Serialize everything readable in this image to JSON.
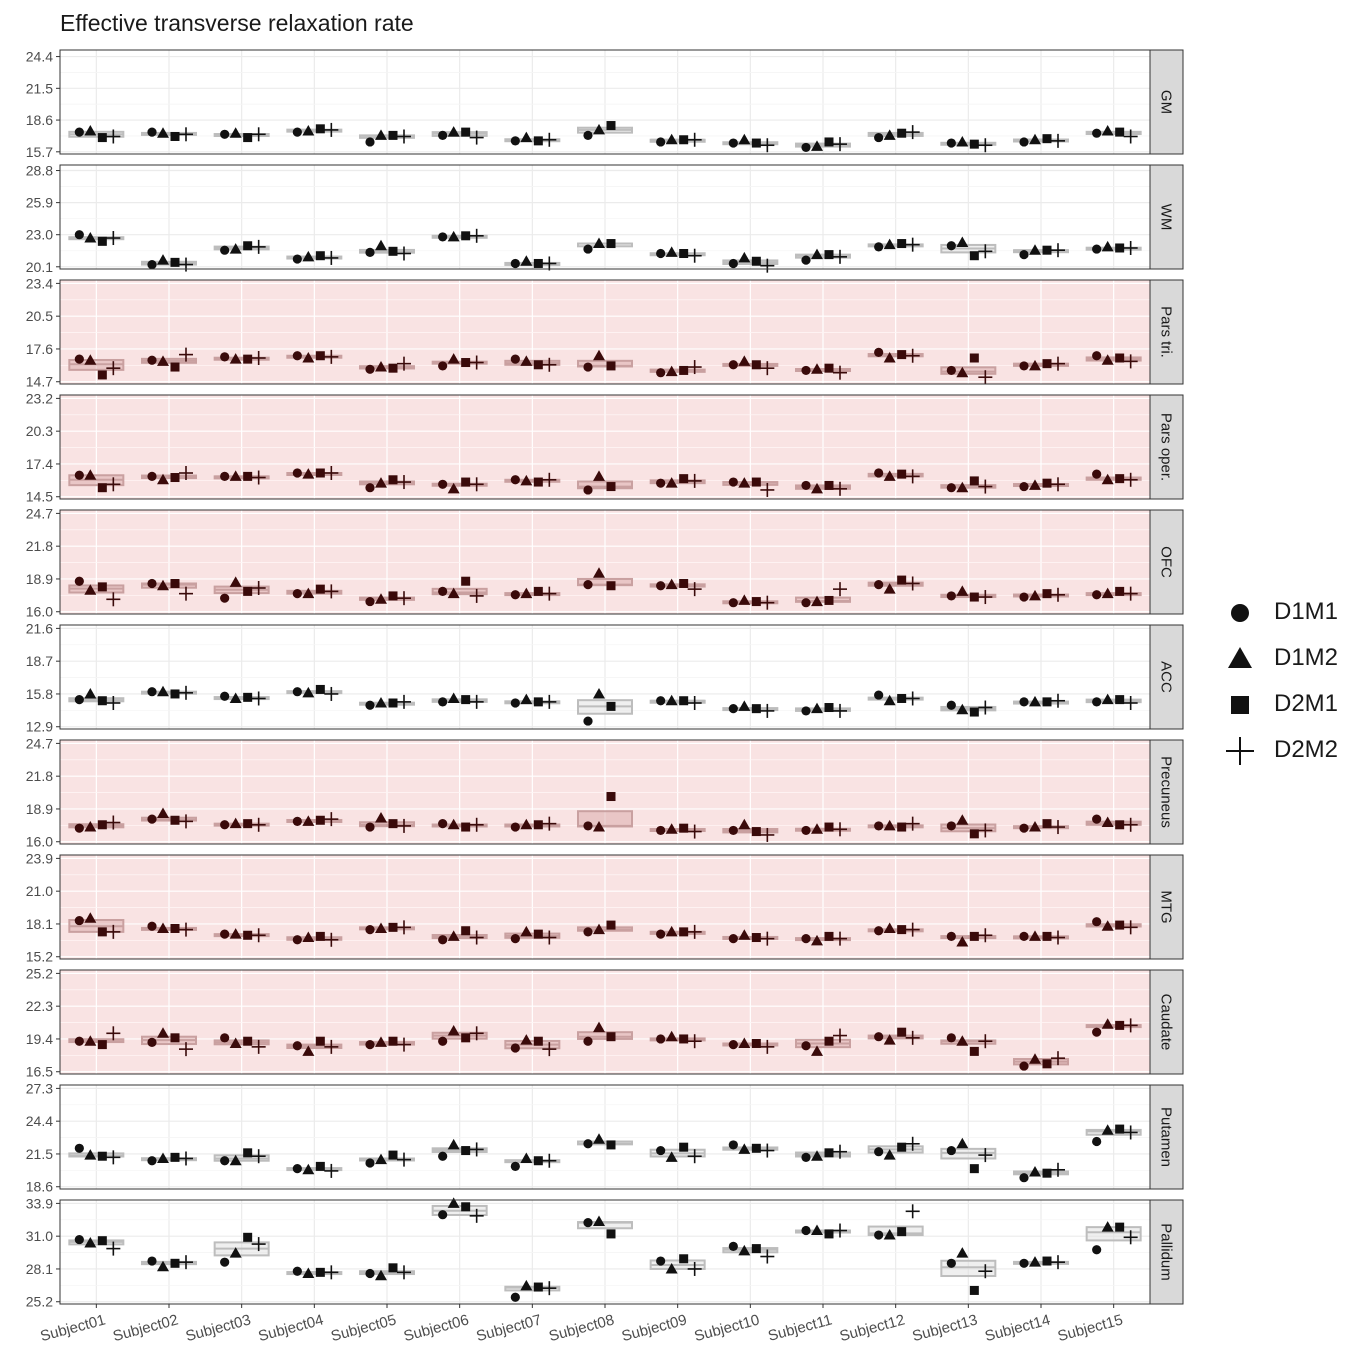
{
  "title": "Effective transverse relaxation rate",
  "legend": [
    {
      "label": "D1M1",
      "shape": "circle"
    },
    {
      "label": "D1M2",
      "shape": "triangle"
    },
    {
      "label": "D2M1",
      "shape": "square"
    },
    {
      "label": "D2M2",
      "shape": "plus"
    }
  ],
  "colors": {
    "highlight_panel": "#f9e3e3",
    "strip": "#d9d9d9",
    "box_gray": "#bdbdbd",
    "box_red": "#c9a0a0",
    "marker": "#111111",
    "marker_red": "#3a0a0a"
  },
  "chart_data": {
    "type": "scatter",
    "title": "Effective transverse relaxation rate",
    "xlabel": "",
    "ylabel": "",
    "categories": [
      "Subject01",
      "Subject02",
      "Subject03",
      "Subject04",
      "Subject05",
      "Subject06",
      "Subject07",
      "Subject08",
      "Subject09",
      "Subject10",
      "Subject11",
      "Subject12",
      "Subject13",
      "Subject14",
      "Subject15"
    ],
    "series_names": [
      "D1M1",
      "D1M2",
      "D2M1",
      "D2M2"
    ],
    "panels": [
      {
        "name": "GM",
        "highlight": false,
        "ylim": [
          15.5,
          25.0
        ],
        "ticks": [
          "15.7",
          "18.6",
          "21.5",
          "24.4"
        ],
        "values": [
          [
            17.5,
            17.6,
            17.0,
            17.1
          ],
          [
            17.5,
            17.4,
            17.1,
            17.3
          ],
          [
            17.3,
            17.4,
            17.0,
            17.3
          ],
          [
            17.5,
            17.6,
            17.8,
            17.7
          ],
          [
            16.6,
            17.2,
            17.2,
            17.1
          ],
          [
            17.2,
            17.5,
            17.5,
            17.0
          ],
          [
            16.7,
            17.0,
            16.7,
            16.8
          ],
          [
            17.2,
            17.7,
            18.1,
            null
          ],
          [
            16.6,
            16.8,
            16.8,
            16.8
          ],
          [
            16.5,
            16.8,
            16.5,
            16.3
          ],
          [
            16.1,
            16.2,
            16.6,
            16.4
          ],
          [
            17.0,
            17.2,
            17.4,
            17.5
          ],
          [
            16.5,
            16.6,
            16.4,
            16.3
          ],
          [
            16.6,
            16.8,
            16.9,
            16.7
          ],
          [
            17.4,
            17.6,
            17.5,
            17.1
          ]
        ]
      },
      {
        "name": "WM",
        "highlight": false,
        "ylim": [
          19.9,
          29.3
        ],
        "ticks": [
          "20.1",
          "23.0",
          "25.9",
          "28.8"
        ],
        "values": [
          [
            23.0,
            22.7,
            22.4,
            22.7
          ],
          [
            20.3,
            20.7,
            20.5,
            20.3
          ],
          [
            21.6,
            21.7,
            22.0,
            21.9
          ],
          [
            20.8,
            21.0,
            21.1,
            20.9
          ],
          [
            21.4,
            22.0,
            21.5,
            21.3
          ],
          [
            22.8,
            22.8,
            22.9,
            22.9
          ],
          [
            20.4,
            20.6,
            20.4,
            20.4
          ],
          [
            21.7,
            22.2,
            22.2,
            null
          ],
          [
            21.3,
            21.4,
            21.3,
            21.1
          ],
          [
            20.4,
            20.9,
            20.6,
            20.2
          ],
          [
            20.7,
            21.2,
            21.2,
            21.0
          ],
          [
            21.9,
            22.1,
            22.2,
            22.1
          ],
          [
            22.0,
            22.3,
            21.1,
            21.5
          ],
          [
            21.2,
            21.6,
            21.6,
            21.6
          ],
          [
            21.7,
            21.9,
            21.8,
            21.8
          ]
        ]
      },
      {
        "name": "Pars tri.",
        "highlight": true,
        "ylim": [
          14.5,
          23.7
        ],
        "ticks": [
          "14.7",
          "17.6",
          "20.5",
          "23.4"
        ],
        "values": [
          [
            16.7,
            16.6,
            15.3,
            15.9
          ],
          [
            16.6,
            16.5,
            16.0,
            17.1
          ],
          [
            16.9,
            16.7,
            16.7,
            16.8
          ],
          [
            17.0,
            16.8,
            17.0,
            16.9
          ],
          [
            15.8,
            16.0,
            15.9,
            16.3
          ],
          [
            16.1,
            16.7,
            16.4,
            16.4
          ],
          [
            16.7,
            16.5,
            16.2,
            16.2
          ],
          [
            16.0,
            17.0,
            16.1,
            null
          ],
          [
            15.5,
            15.6,
            15.7,
            16.0
          ],
          [
            16.2,
            16.5,
            16.2,
            15.9
          ],
          [
            15.7,
            15.8,
            15.9,
            15.5
          ],
          [
            17.3,
            16.8,
            17.1,
            17.0
          ],
          [
            15.7,
            15.5,
            16.8,
            15.1
          ],
          [
            16.1,
            16.1,
            16.3,
            16.3
          ],
          [
            17.0,
            16.6,
            16.8,
            16.5
          ]
        ]
      },
      {
        "name": "Pars oper.",
        "highlight": true,
        "ylim": [
          14.3,
          23.5
        ],
        "ticks": [
          "14.5",
          "17.4",
          "20.3",
          "23.2"
        ],
        "values": [
          [
            16.4,
            16.4,
            15.3,
            15.6
          ],
          [
            16.3,
            16.0,
            16.2,
            16.6
          ],
          [
            16.3,
            16.3,
            16.3,
            16.2
          ],
          [
            16.6,
            16.5,
            16.6,
            16.6
          ],
          [
            15.3,
            15.7,
            16.0,
            15.8
          ],
          [
            15.6,
            15.2,
            15.8,
            15.6
          ],
          [
            16.0,
            15.9,
            15.8,
            16.0
          ],
          [
            15.1,
            16.3,
            15.4,
            null
          ],
          [
            15.7,
            15.7,
            16.1,
            15.9
          ],
          [
            15.8,
            15.7,
            15.8,
            15.1
          ],
          [
            15.5,
            15.2,
            15.5,
            15.2
          ],
          [
            16.6,
            16.3,
            16.5,
            16.3
          ],
          [
            15.3,
            15.3,
            15.9,
            15.4
          ],
          [
            15.4,
            15.5,
            15.7,
            15.6
          ],
          [
            16.5,
            16.0,
            16.1,
            16.0
          ]
        ]
      },
      {
        "name": "OFC",
        "highlight": true,
        "ylim": [
          15.8,
          25.0
        ],
        "ticks": [
          "16.0",
          "18.9",
          "21.8",
          "24.7"
        ],
        "values": [
          [
            18.7,
            17.9,
            18.2,
            17.1
          ],
          [
            18.5,
            18.3,
            18.5,
            17.6
          ],
          [
            17.2,
            18.6,
            17.8,
            18.1
          ],
          [
            17.6,
            17.6,
            18.0,
            17.8
          ],
          [
            16.9,
            17.1,
            17.4,
            17.2
          ],
          [
            17.8,
            17.6,
            18.7,
            17.4
          ],
          [
            17.5,
            17.6,
            17.8,
            17.6
          ],
          [
            18.4,
            19.4,
            18.3,
            null
          ],
          [
            18.3,
            18.4,
            18.5,
            18.0
          ],
          [
            16.8,
            17.0,
            16.9,
            16.8
          ],
          [
            16.8,
            16.9,
            17.0,
            18.0
          ],
          [
            18.4,
            18.0,
            18.8,
            18.5
          ],
          [
            17.4,
            17.8,
            17.3,
            17.3
          ],
          [
            17.3,
            17.4,
            17.6,
            17.5
          ],
          [
            17.5,
            17.6,
            17.8,
            17.6
          ]
        ]
      },
      {
        "name": "ACC",
        "highlight": false,
        "ylim": [
          12.7,
          21.9
        ],
        "ticks": [
          "12.9",
          "15.8",
          "18.7",
          "21.6"
        ],
        "values": [
          [
            15.3,
            15.8,
            15.2,
            15.0
          ],
          [
            16.0,
            16.0,
            15.8,
            15.9
          ],
          [
            15.6,
            15.4,
            15.5,
            15.4
          ],
          [
            16.0,
            15.9,
            16.2,
            15.8
          ],
          [
            14.8,
            15.0,
            15.0,
            15.1
          ],
          [
            15.1,
            15.4,
            15.3,
            15.1
          ],
          [
            15.0,
            15.3,
            15.1,
            15.1
          ],
          [
            13.4,
            15.8,
            14.7,
            null
          ],
          [
            15.2,
            15.2,
            15.2,
            15.0
          ],
          [
            14.5,
            14.7,
            14.5,
            14.3
          ],
          [
            14.3,
            14.5,
            14.6,
            14.3
          ],
          [
            15.7,
            15.2,
            15.4,
            15.4
          ],
          [
            14.8,
            14.4,
            14.2,
            14.6
          ],
          [
            15.1,
            15.1,
            15.1,
            15.2
          ],
          [
            15.1,
            15.3,
            15.3,
            15.0
          ]
        ]
      },
      {
        "name": "Precuneus",
        "highlight": true,
        "ylim": [
          15.8,
          25.0
        ],
        "ticks": [
          "16.0",
          "18.9",
          "21.8",
          "24.7"
        ],
        "values": [
          [
            17.2,
            17.3,
            17.5,
            17.7
          ],
          [
            18.0,
            18.5,
            17.9,
            17.8
          ],
          [
            17.5,
            17.6,
            17.6,
            17.5
          ],
          [
            17.8,
            17.8,
            17.9,
            18.0
          ],
          [
            17.3,
            18.1,
            17.6,
            17.4
          ],
          [
            17.6,
            17.5,
            17.3,
            17.5
          ],
          [
            17.3,
            17.5,
            17.5,
            17.6
          ],
          [
            17.4,
            17.3,
            20.0,
            null
          ],
          [
            17.0,
            17.1,
            17.2,
            16.9
          ],
          [
            17.0,
            17.5,
            16.9,
            16.6
          ],
          [
            17.0,
            17.1,
            17.3,
            17.1
          ],
          [
            17.4,
            17.4,
            17.3,
            17.6
          ],
          [
            17.4,
            17.9,
            16.7,
            17.0
          ],
          [
            17.2,
            17.3,
            17.6,
            17.3
          ],
          [
            18.0,
            17.7,
            17.5,
            17.5
          ]
        ]
      },
      {
        "name": "MTG",
        "highlight": true,
        "ylim": [
          15.0,
          24.2
        ],
        "ticks": [
          "15.2",
          "18.1",
          "21.0",
          "23.9"
        ],
        "values": [
          [
            18.4,
            18.6,
            17.4,
            17.4
          ],
          [
            17.9,
            17.7,
            17.7,
            17.6
          ],
          [
            17.2,
            17.2,
            17.1,
            17.1
          ],
          [
            16.7,
            16.9,
            17.0,
            16.7
          ],
          [
            17.6,
            17.7,
            17.8,
            17.8
          ],
          [
            16.7,
            17.0,
            17.5,
            16.9
          ],
          [
            16.8,
            17.4,
            17.2,
            16.9
          ],
          [
            17.4,
            17.6,
            18.0,
            null
          ],
          [
            17.2,
            17.4,
            17.4,
            17.4
          ],
          [
            16.8,
            17.1,
            16.9,
            16.8
          ],
          [
            16.8,
            16.6,
            17.0,
            16.8
          ],
          [
            17.5,
            17.7,
            17.6,
            17.6
          ],
          [
            17.0,
            16.5,
            17.0,
            17.1
          ],
          [
            17.0,
            17.0,
            17.0,
            16.9
          ],
          [
            18.3,
            17.9,
            18.0,
            17.8
          ]
        ]
      },
      {
        "name": "Caudate",
        "highlight": true,
        "ylim": [
          16.3,
          25.5
        ],
        "ticks": [
          "16.5",
          "19.4",
          "22.3",
          "25.2"
        ],
        "values": [
          [
            19.2,
            19.2,
            18.9,
            19.9
          ],
          [
            19.1,
            19.9,
            19.5,
            18.5
          ],
          [
            19.5,
            19.0,
            19.2,
            18.7
          ],
          [
            18.8,
            18.3,
            19.2,
            18.7
          ],
          [
            18.9,
            19.1,
            19.2,
            18.9
          ],
          [
            19.2,
            20.1,
            19.5,
            19.9
          ],
          [
            18.6,
            19.3,
            19.2,
            18.5
          ],
          [
            19.2,
            20.4,
            19.6,
            null
          ],
          [
            19.4,
            19.6,
            19.4,
            19.2
          ],
          [
            18.9,
            19.0,
            19.0,
            18.7
          ],
          [
            18.8,
            18.3,
            19.2,
            19.7
          ],
          [
            19.6,
            19.3,
            20.0,
            19.5
          ],
          [
            19.5,
            19.2,
            18.3,
            19.2
          ],
          [
            17.0,
            17.6,
            17.2,
            17.7
          ],
          [
            20.0,
            20.7,
            20.6,
            20.6
          ]
        ]
      },
      {
        "name": "Putamen",
        "highlight": false,
        "ylim": [
          18.4,
          27.6
        ],
        "ticks": [
          "18.6",
          "21.5",
          "24.4",
          "27.3"
        ],
        "values": [
          [
            22.0,
            21.4,
            21.3,
            21.2
          ],
          [
            20.9,
            21.1,
            21.2,
            21.1
          ],
          [
            20.9,
            20.9,
            21.6,
            21.3
          ],
          [
            20.2,
            20.1,
            20.4,
            20.0
          ],
          [
            20.7,
            21.0,
            21.4,
            21.0
          ],
          [
            21.3,
            22.3,
            21.8,
            21.9
          ],
          [
            20.4,
            21.1,
            20.9,
            20.9
          ],
          [
            22.4,
            22.8,
            22.3,
            null
          ],
          [
            21.8,
            21.2,
            22.1,
            21.3
          ],
          [
            22.3,
            21.9,
            22.0,
            21.8
          ],
          [
            21.2,
            21.3,
            21.6,
            21.7
          ],
          [
            21.7,
            21.4,
            22.1,
            22.4
          ],
          [
            21.8,
            22.4,
            20.2,
            21.4
          ],
          [
            19.4,
            19.9,
            19.8,
            20.1
          ],
          [
            22.6,
            23.6,
            23.7,
            23.4
          ]
        ]
      },
      {
        "name": "Pallidum",
        "highlight": false,
        "ylim": [
          25.0,
          34.2
        ],
        "ticks": [
          "25.2",
          "28.1",
          "31.0",
          "33.9"
        ],
        "values": [
          [
            30.7,
            30.4,
            30.6,
            29.9
          ],
          [
            28.8,
            28.3,
            28.6,
            28.7
          ],
          [
            28.7,
            29.5,
            30.9,
            30.3
          ],
          [
            27.9,
            27.7,
            27.8,
            27.8
          ],
          [
            27.7,
            27.5,
            28.2,
            27.8
          ],
          [
            32.9,
            33.9,
            33.6,
            32.8
          ],
          [
            25.6,
            26.6,
            26.5,
            26.4
          ],
          [
            32.2,
            32.3,
            31.2,
            null
          ],
          [
            28.8,
            28.1,
            29.0,
            28.1
          ],
          [
            30.1,
            29.7,
            29.9,
            29.2
          ],
          [
            31.5,
            31.5,
            31.2,
            31.5
          ],
          [
            31.1,
            31.1,
            31.4,
            33.2
          ],
          [
            28.6,
            29.5,
            26.2,
            27.9
          ],
          [
            28.6,
            28.7,
            28.8,
            28.7
          ],
          [
            29.8,
            31.8,
            31.8,
            30.9
          ]
        ]
      }
    ]
  }
}
